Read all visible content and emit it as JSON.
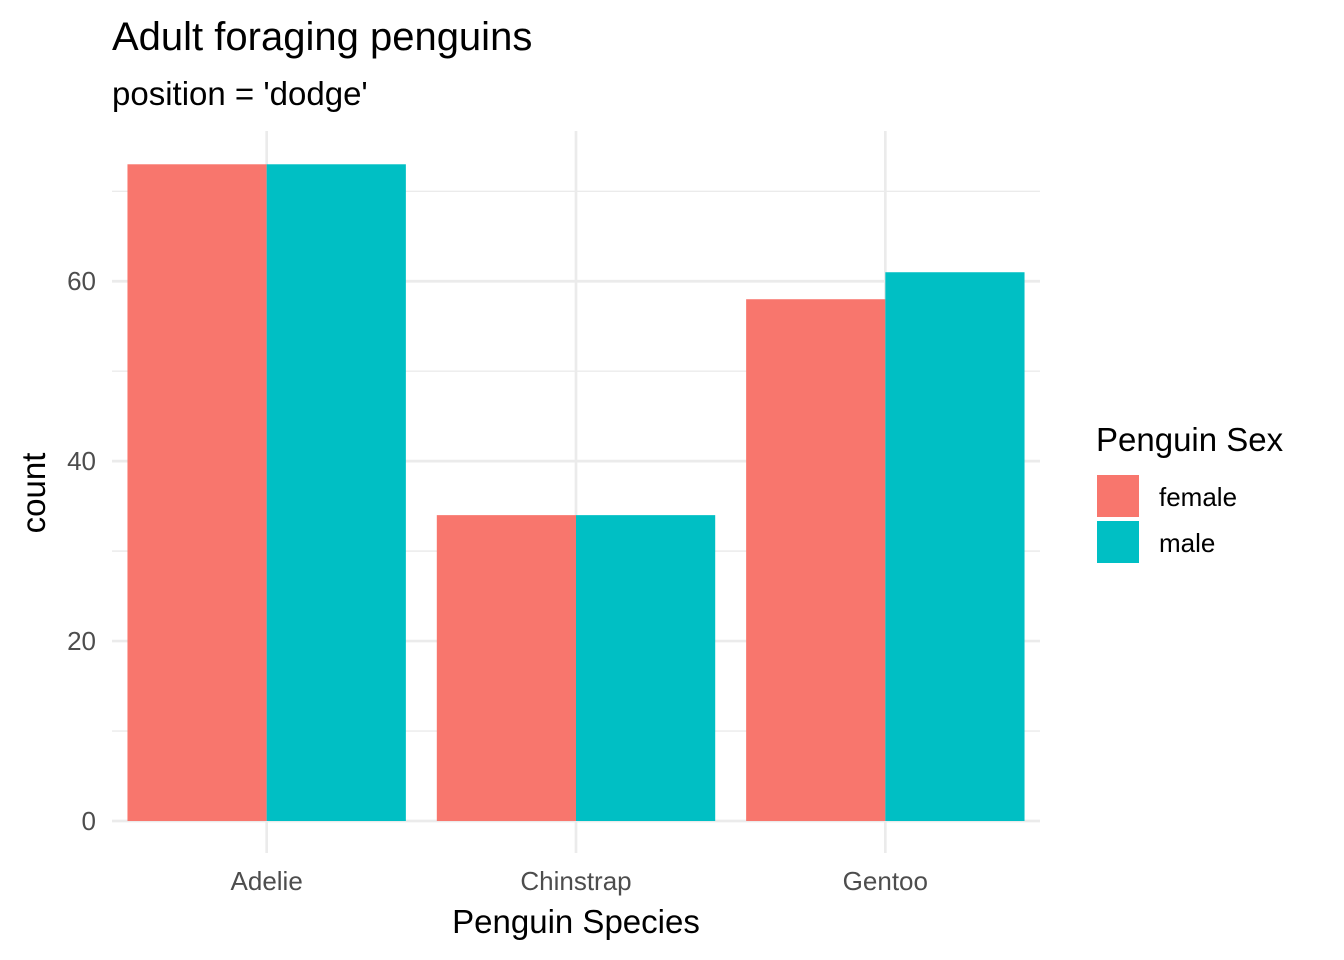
{
  "chart_data": {
    "type": "bar",
    "title": "Adult foraging penguins",
    "subtitle": "position = 'dodge'",
    "xlabel": "Penguin Species",
    "ylabel": "count",
    "categories": [
      "Adelie",
      "Chinstrap",
      "Gentoo"
    ],
    "series": [
      {
        "name": "female",
        "color": "#F8766D",
        "values": [
          73,
          34,
          58
        ]
      },
      {
        "name": "male",
        "color": "#00BFC4",
        "values": [
          73,
          34,
          61
        ]
      }
    ],
    "ylim": [
      0,
      76.7
    ],
    "y_ticks": [
      0,
      20,
      40,
      60
    ],
    "y_ticks_labels": [
      "0",
      "20",
      "40",
      "60"
    ],
    "legend_title": "Penguin Sex",
    "legend_position": "right",
    "grid": true,
    "theme": "minimal"
  }
}
